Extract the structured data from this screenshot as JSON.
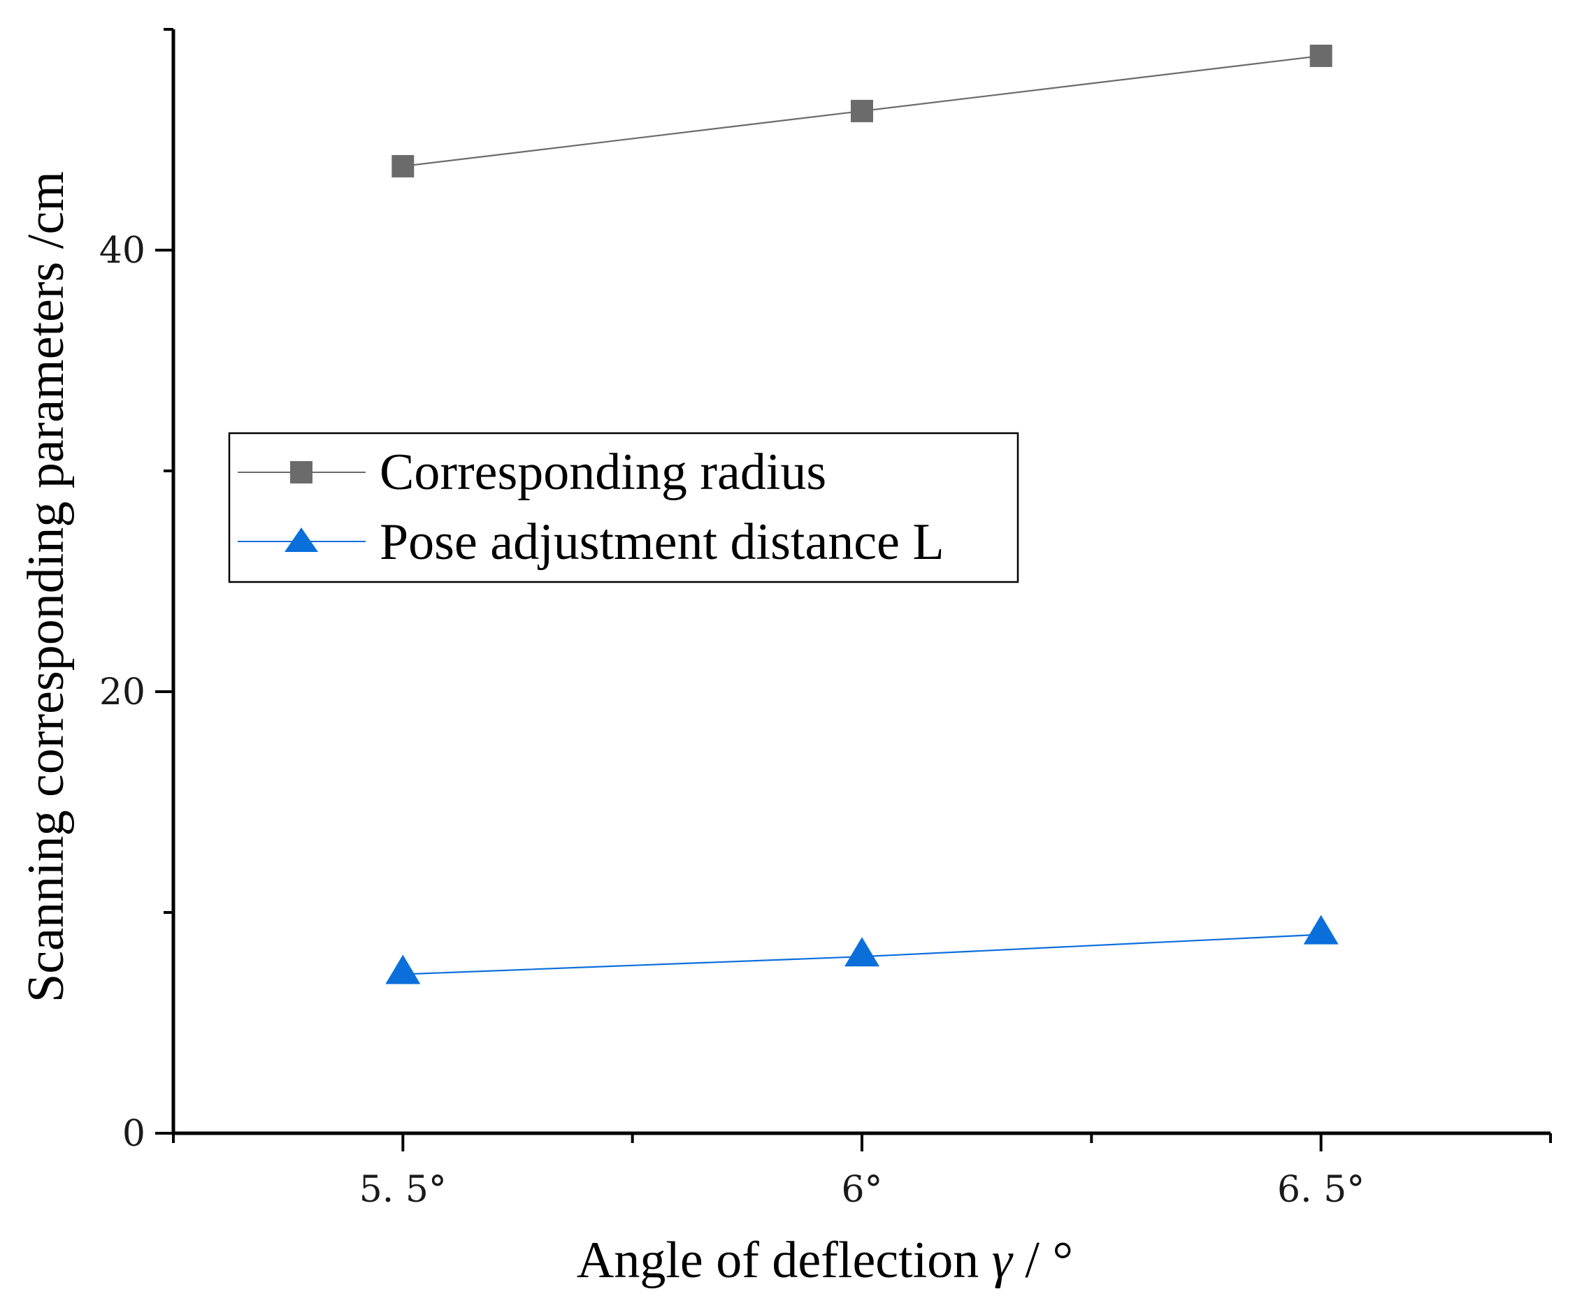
{
  "chart_data": {
    "type": "line",
    "title": "",
    "xlabel_main": "Angle of deflection ",
    "xlabel_symbol": "γ",
    "xlabel_unit": " / °",
    "ylabel": "Scanning corresponding parameters /cm",
    "categories": [
      "5. 5°",
      "6°",
      "6. 5°"
    ],
    "x": [
      5.5,
      6.0,
      6.5
    ],
    "xlim": [
      5.25,
      6.75
    ],
    "ylim": [
      0,
      50
    ],
    "yticks": [
      0,
      20,
      40
    ],
    "yminor": [
      10,
      30
    ],
    "xminor": [
      5.25,
      5.75,
      6.25,
      6.75
    ],
    "grid": false,
    "legend_position": "center-left",
    "series": [
      {
        "name": "Corresponding radius",
        "values": [
          43.8,
          46.3,
          48.8
        ],
        "color": "#6b6b6b",
        "marker": "square"
      },
      {
        "name": "Pose adjustment distance L",
        "values": [
          7.2,
          8.0,
          9.0
        ],
        "color": "#0a6fdb",
        "marker": "triangle"
      }
    ]
  }
}
